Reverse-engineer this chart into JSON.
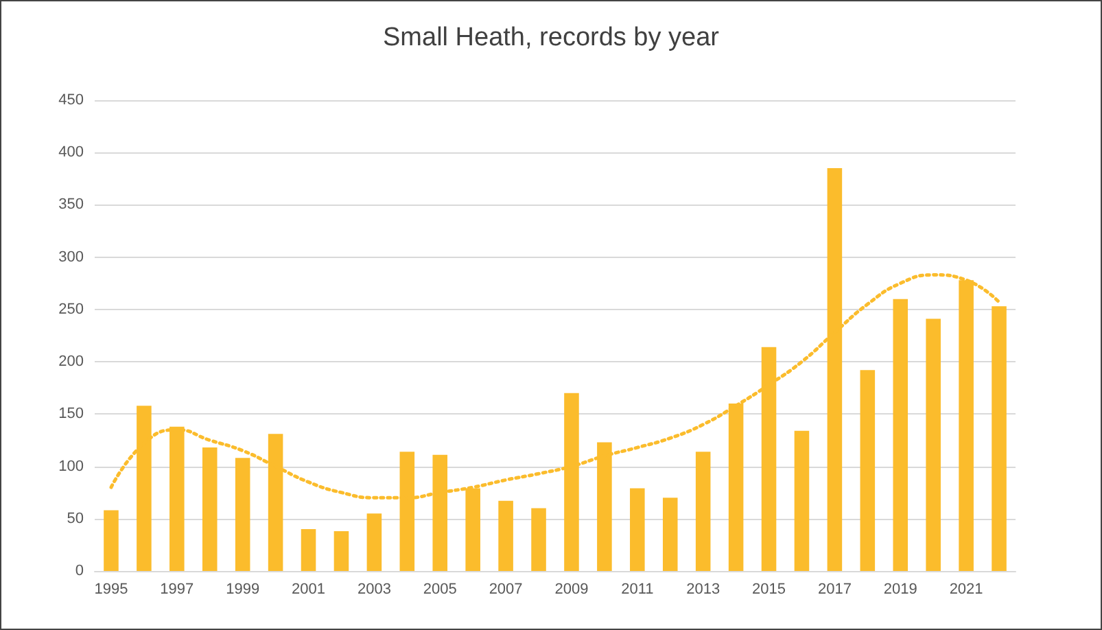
{
  "chart_data": {
    "type": "bar",
    "title": "Small Heath, records by year",
    "categories": [
      "1995",
      null,
      "1997",
      null,
      "1999",
      null,
      "2001",
      null,
      "2003",
      null,
      "2005",
      null,
      "2007",
      null,
      "2009",
      null,
      "2011",
      null,
      "2013",
      null,
      "2015",
      null,
      "2017",
      null,
      "2019",
      null,
      "2021",
      null
    ],
    "series": [
      {
        "color": "#fbbc2c",
        "values": [
          58,
          158,
          138,
          118,
          108,
          131,
          40,
          38,
          55,
          114,
          111,
          79,
          67,
          60,
          170,
          123,
          79,
          70,
          114,
          160,
          214,
          134,
          385,
          192,
          260,
          241,
          278,
          253
        ]
      },
      {
        "type": "line",
        "color": "#fbbc2c",
        "line_style": "dotted",
        "marker": "none",
        "values": [
          80,
          122,
          135,
          125,
          115,
          100,
          85,
          75,
          70,
          70,
          75,
          80,
          87,
          93,
          100,
          110,
          118,
          127,
          140,
          158,
          178,
          200,
          228,
          255,
          275,
          283,
          278,
          257
        ]
      }
    ],
    "ylim": [
      0,
      450
    ],
    "yticks": [
      0,
      50,
      100,
      150,
      200,
      250,
      300,
      350,
      400,
      450
    ],
    "grid": "y"
  }
}
